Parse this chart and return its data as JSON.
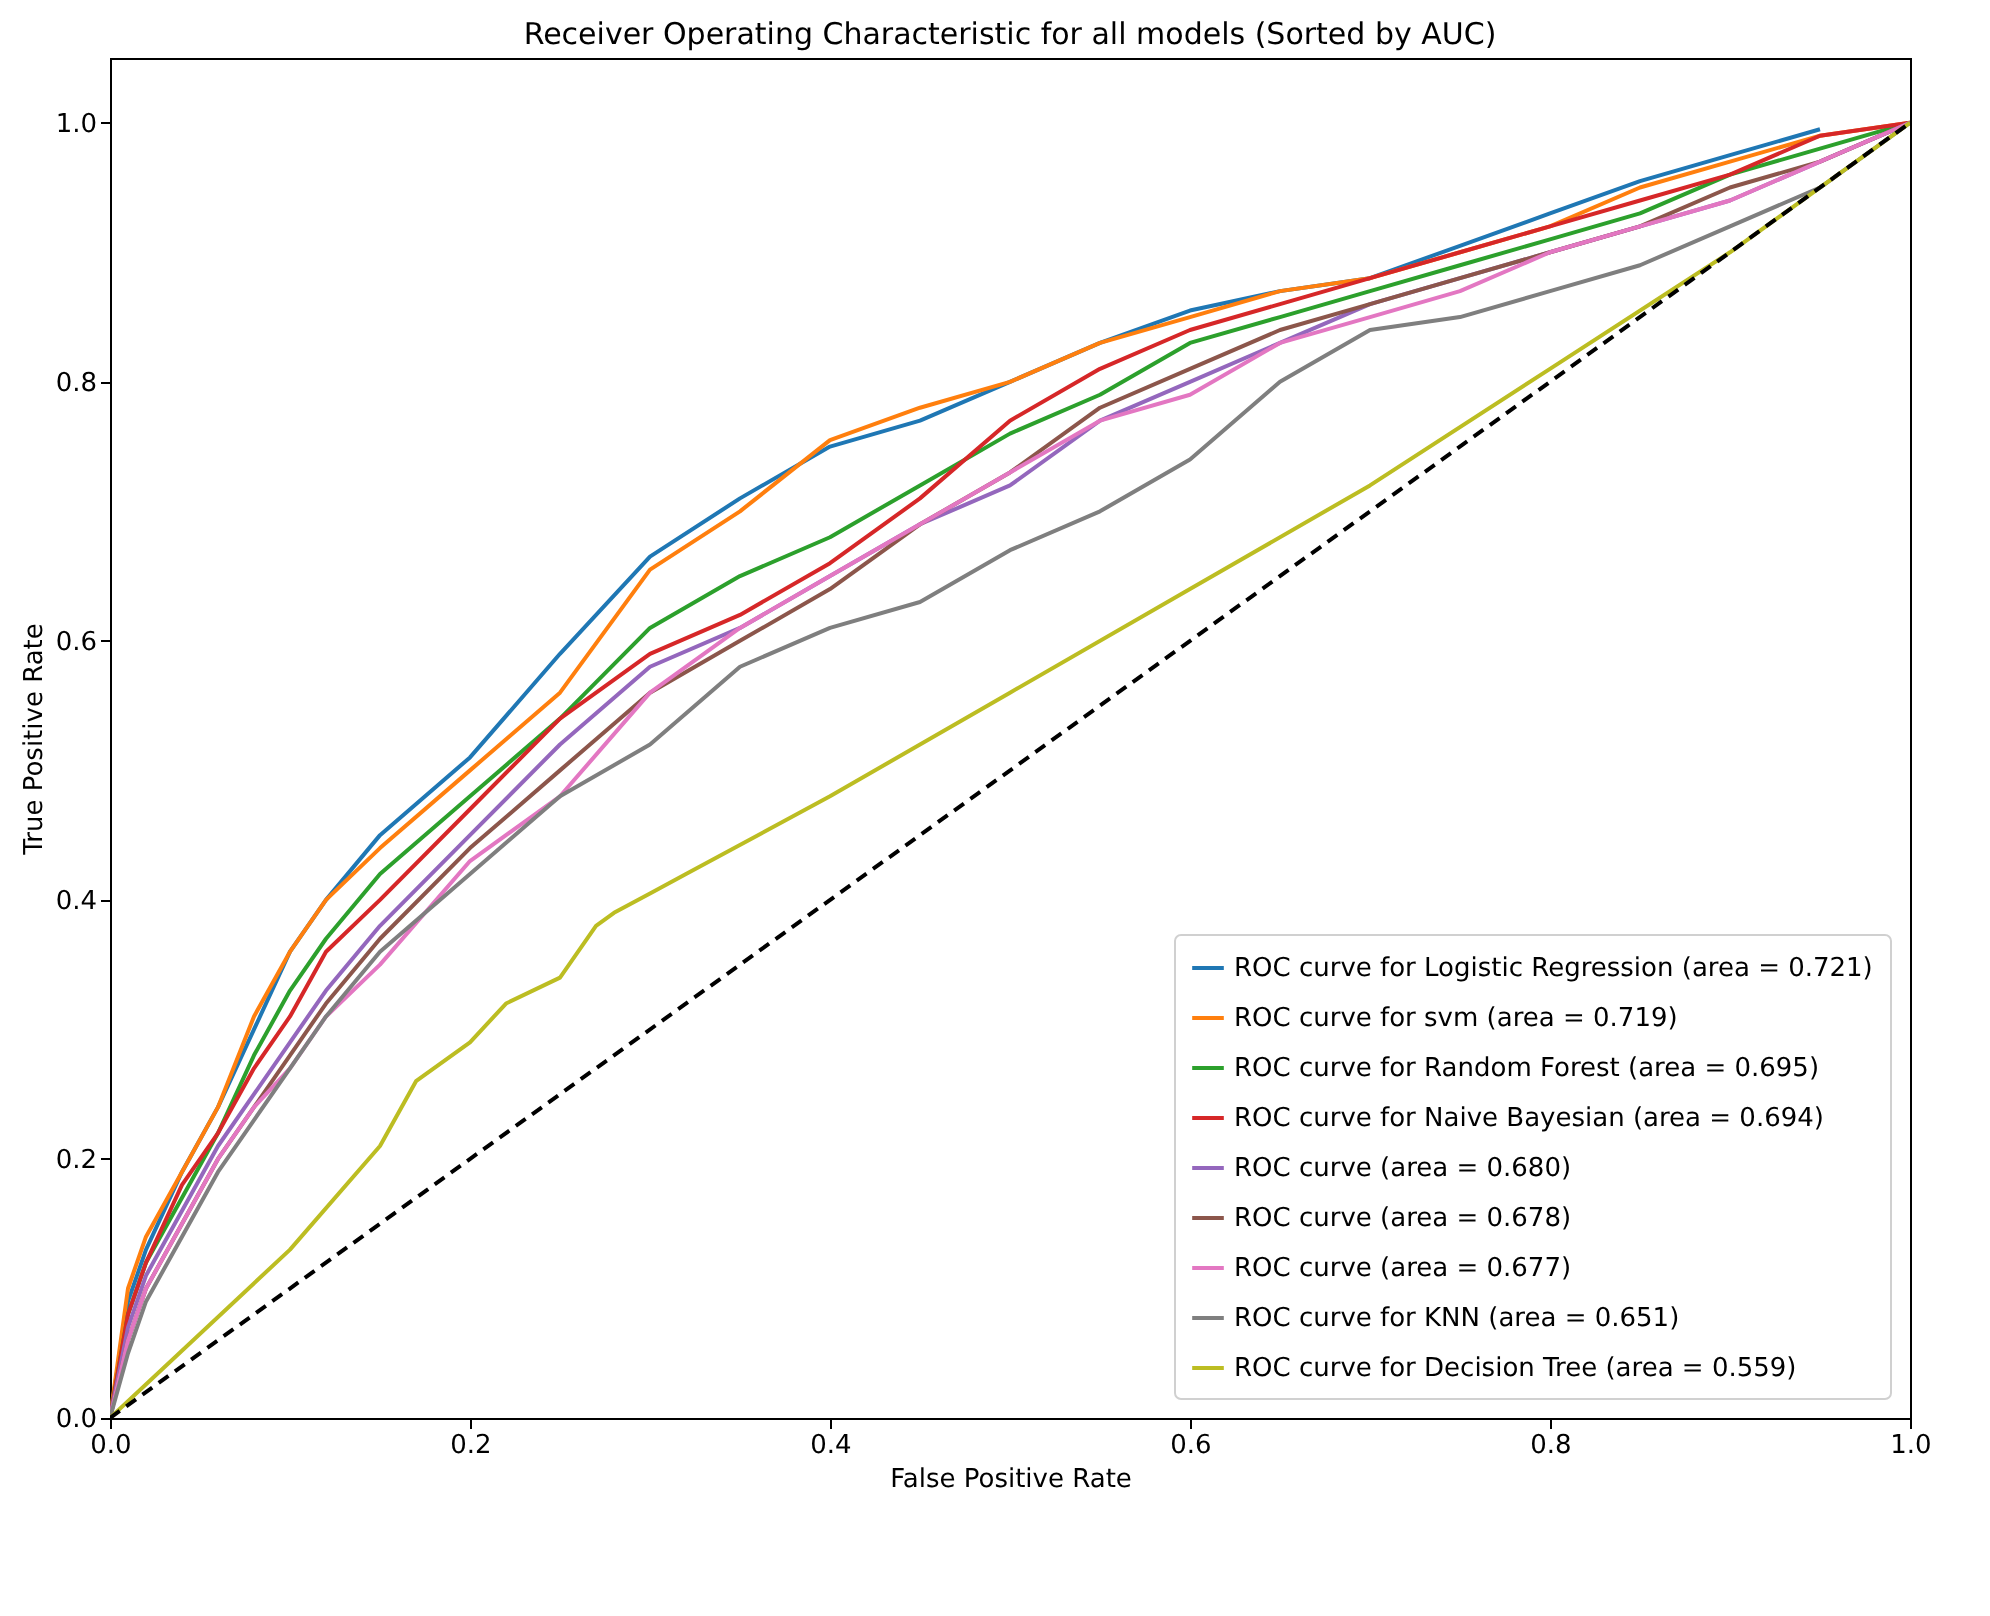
{
  "chart_data": {
    "type": "line",
    "title": "Receiver Operating Characteristic for all models (Sorted by AUC)",
    "xlabel": "False Positive Rate",
    "ylabel": "True Positive Rate",
    "xlim": [
      0,
      1
    ],
    "ylim": [
      0,
      1.05
    ],
    "xticks": [
      {
        "value": 0,
        "label": "0.0"
      },
      {
        "value": 0.2,
        "label": "0.2"
      },
      {
        "value": 0.4,
        "label": "0.4"
      },
      {
        "value": 0.6,
        "label": "0.6"
      },
      {
        "value": 0.8,
        "label": "0.8"
      },
      {
        "value": 1,
        "label": "1.0"
      }
    ],
    "yticks": [
      {
        "value": 0,
        "label": "0.0"
      },
      {
        "value": 0.2,
        "label": "0.2"
      },
      {
        "value": 0.4,
        "label": "0.4"
      },
      {
        "value": 0.6,
        "label": "0.6"
      },
      {
        "value": 0.8,
        "label": "0.8"
      },
      {
        "value": 1,
        "label": "1.0"
      }
    ],
    "grid": false,
    "legend": "bottom right",
    "marker": "none",
    "x": [
      0,
      0.01,
      0.02,
      0.04,
      0.06,
      0.08,
      0.1,
      0.12,
      0.15,
      0.2,
      0.25,
      0.3,
      0.35,
      0.4,
      0.45,
      0.5,
      0.55,
      0.6,
      0.65,
      0.7,
      0.75,
      0.8,
      0.85,
      0.9,
      0.95,
      1
    ],
    "series": [
      {
        "name": "ROC curve for Logistic Regression (area = 0.721)",
        "color": "#1f77b4",
        "values": [
          0,
          0.09,
          0.13,
          0.19,
          0.24,
          0.3,
          0.36,
          0.4,
          0.45,
          0.51,
          0.59,
          0.665,
          0.71,
          0.75,
          0.77,
          0.8,
          0.83,
          0.855,
          0.87,
          0.88,
          0.905,
          0.93,
          0.955,
          0.975,
          0.995,
          null
        ]
      },
      {
        "name": "ROC curve for svm (area = 0.719)",
        "color": "#ff7f0e",
        "values": [
          0,
          0.1,
          0.14,
          0.19,
          0.24,
          0.31,
          0.36,
          0.4,
          0.44,
          0.5,
          0.56,
          0.655,
          0.7,
          0.755,
          0.78,
          0.8,
          0.83,
          0.85,
          0.87,
          0.88,
          0.9,
          0.92,
          0.95,
          0.97,
          0.99,
          1
        ]
      },
      {
        "name": "ROC curve for Random Forest (area = 0.695)",
        "color": "#2ca02c",
        "values": [
          0,
          0.08,
          0.12,
          0.17,
          0.22,
          0.28,
          0.33,
          0.37,
          0.42,
          0.48,
          0.54,
          0.61,
          0.65,
          0.68,
          0.72,
          0.76,
          0.79,
          0.83,
          0.85,
          0.87,
          0.89,
          0.91,
          0.93,
          0.96,
          0.98,
          1
        ]
      },
      {
        "name": "ROC curve for Naive Bayesian (area = 0.694)",
        "color": "#d62728",
        "values": [
          0,
          0.08,
          0.12,
          0.18,
          0.22,
          0.27,
          0.31,
          0.36,
          0.4,
          0.47,
          0.54,
          0.59,
          0.62,
          0.66,
          0.71,
          0.77,
          0.81,
          0.84,
          0.86,
          0.88,
          0.9,
          0.92,
          0.94,
          0.96,
          0.99,
          1
        ]
      },
      {
        "name": "ROC curve (area = 0.680)",
        "color": "#9467bd",
        "values": [
          0,
          0.07,
          0.11,
          0.16,
          0.21,
          0.25,
          0.29,
          0.33,
          0.38,
          0.45,
          0.52,
          0.58,
          0.61,
          0.65,
          0.69,
          0.72,
          0.77,
          0.8,
          0.83,
          0.86,
          0.88,
          0.9,
          0.92,
          0.94,
          0.97,
          1
        ]
      },
      {
        "name": "ROC curve (area = 0.678)",
        "color": "#8c564b",
        "values": [
          0,
          0.06,
          0.1,
          0.15,
          0.2,
          0.24,
          0.28,
          0.32,
          0.37,
          0.44,
          0.5,
          0.56,
          0.6,
          0.64,
          0.69,
          0.73,
          0.78,
          0.81,
          0.84,
          0.86,
          0.88,
          0.9,
          0.92,
          0.95,
          0.97,
          1
        ]
      },
      {
        "name": "ROC curve (area = 0.677)",
        "color": "#e377c2",
        "values": [
          0,
          0.06,
          0.1,
          0.15,
          0.2,
          0.24,
          0.27,
          0.31,
          0.35,
          0.43,
          0.48,
          0.56,
          0.61,
          0.65,
          0.69,
          0.73,
          0.77,
          0.79,
          0.83,
          0.85,
          0.87,
          0.9,
          0.92,
          0.94,
          0.97,
          1
        ]
      },
      {
        "name": "ROC curve for KNN (area = 0.651)",
        "color": "#7f7f7f",
        "values": [
          0,
          0.05,
          0.09,
          0.14,
          0.19,
          0.23,
          0.27,
          0.31,
          0.36,
          0.42,
          0.48,
          0.52,
          0.58,
          0.61,
          0.63,
          0.67,
          0.7,
          0.74,
          0.8,
          0.84,
          0.85,
          0.87,
          0.89,
          0.92,
          0.95,
          1
        ]
      },
      {
        "name": "ROC curve for Decision Tree (area = 0.559)",
        "color": "#bcbd22",
        "x": [
          0,
          0.1,
          0.15,
          0.17,
          0.2,
          0.22,
          0.25,
          0.27,
          0.28,
          0.3,
          0.32,
          0.4,
          0.5,
          0.6,
          0.7,
          0.8,
          0.9,
          1
        ],
        "values": [
          0,
          0.13,
          0.21,
          0.26,
          0.29,
          0.32,
          0.34,
          0.38,
          0.39,
          0.405,
          0.42,
          0.48,
          0.56,
          0.64,
          0.72,
          0.81,
          0.9,
          1
        ]
      },
      {
        "color": "#000000",
        "line_style": "dashed",
        "x": [
          0,
          1
        ],
        "values": [
          0,
          1
        ]
      }
    ]
  }
}
